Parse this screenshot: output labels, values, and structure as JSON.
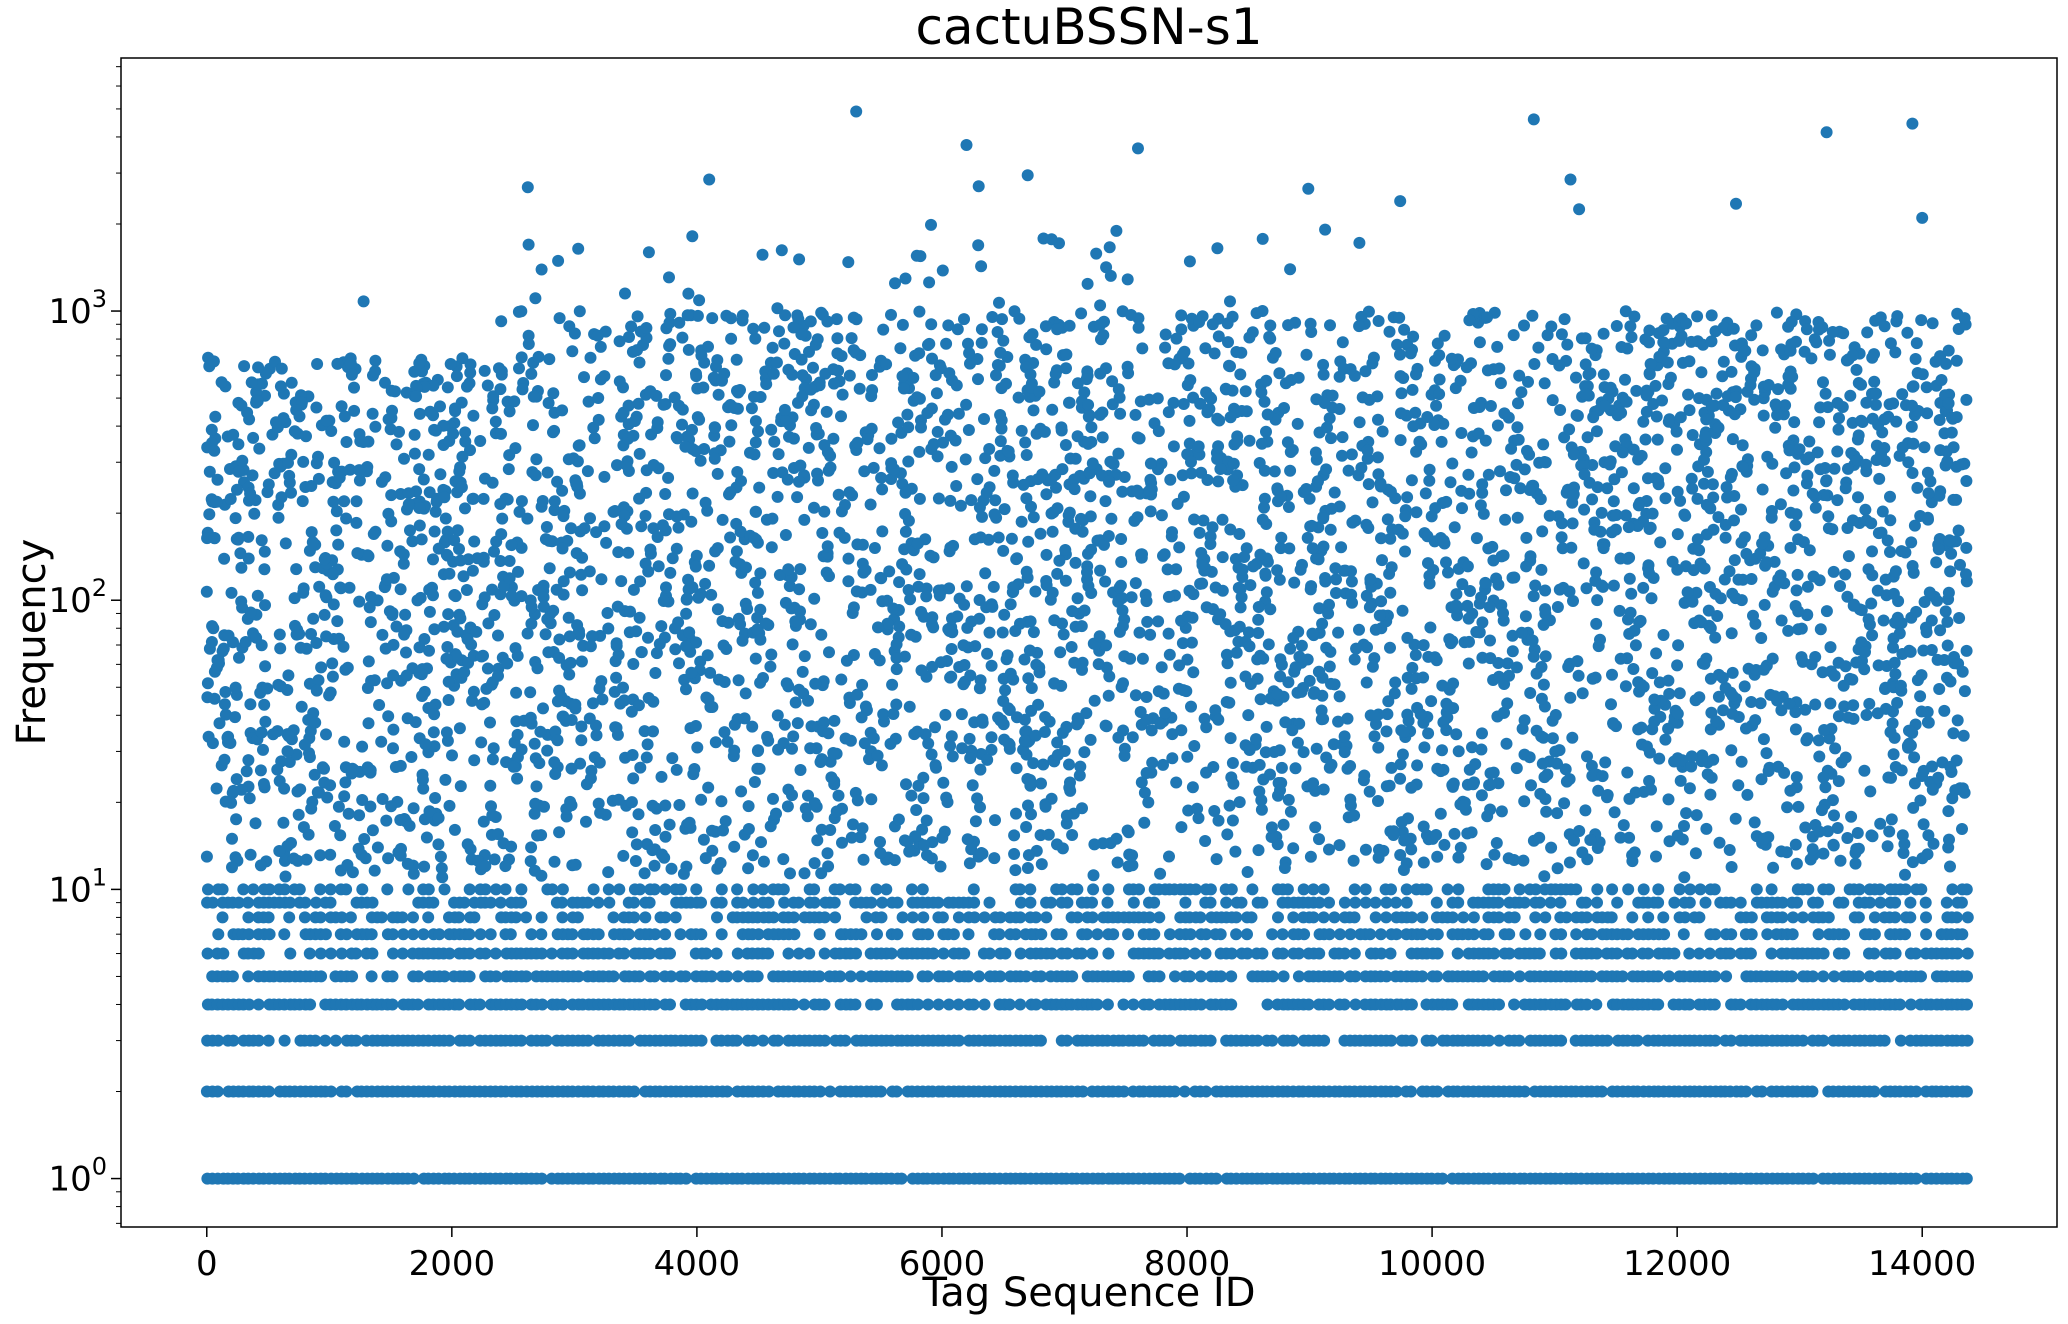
{
  "chart_data": {
    "type": "scatter",
    "title": "cactuBSSN-s1",
    "xlabel": "Tag Sequence ID",
    "ylabel": "Frequency",
    "xlim": [
      -700,
      15100
    ],
    "ylim": [
      0.68,
      7500
    ],
    "yscale": "log",
    "grid": false,
    "legend": "none",
    "marker_color": "#1f77b4",
    "x_ticks": [
      0,
      2000,
      4000,
      6000,
      8000,
      10000,
      12000,
      14000
    ],
    "x_tick_labels": [
      "0",
      "2000",
      "4000",
      "6000",
      "8000",
      "10000",
      "12000",
      "14000"
    ],
    "y_ticks": [
      1,
      10,
      100,
      1000
    ],
    "y_tick_labels": [
      {
        "base": "10",
        "exp": "0"
      },
      {
        "base": "10",
        "exp": "1"
      },
      {
        "base": "10",
        "exp": "2"
      },
      {
        "base": "10",
        "exp": "3"
      }
    ],
    "x_range": [
      0,
      14370
    ],
    "discrete_levels": [
      {
        "y": 1,
        "coverage": 0.97
      },
      {
        "y": 2,
        "coverage": 0.93
      },
      {
        "y": 3,
        "coverage": 0.85
      },
      {
        "y": 4,
        "coverage": 0.78
      },
      {
        "y": 5,
        "coverage": 0.7
      },
      {
        "y": 6,
        "coverage": 0.62
      },
      {
        "y": 7,
        "coverage": 0.58
      },
      {
        "y": 8,
        "coverage": 0.55
      },
      {
        "y": 9,
        "coverage": 0.5
      },
      {
        "y": 10,
        "coverage": 0.45
      }
    ],
    "cloud_y_range": [
      11,
      1000
    ],
    "notable_points": [
      {
        "x": 5300,
        "y": 4900
      },
      {
        "x": 10830,
        "y": 4600
      },
      {
        "x": 13920,
        "y": 4450
      },
      {
        "x": 13220,
        "y": 4150
      },
      {
        "x": 6200,
        "y": 3750
      },
      {
        "x": 7600,
        "y": 3650
      },
      {
        "x": 6700,
        "y": 2950
      },
      {
        "x": 4100,
        "y": 2850
      },
      {
        "x": 11130,
        "y": 2850
      },
      {
        "x": 2620,
        "y": 2680
      },
      {
        "x": 8990,
        "y": 2650
      },
      {
        "x": 6300,
        "y": 2700
      },
      {
        "x": 9740,
        "y": 2400
      },
      {
        "x": 12480,
        "y": 2350
      },
      {
        "x": 11200,
        "y": 2250
      },
      {
        "x": 14000,
        "y": 2100
      },
      {
        "x": 1280,
        "y": 1080
      }
    ]
  }
}
